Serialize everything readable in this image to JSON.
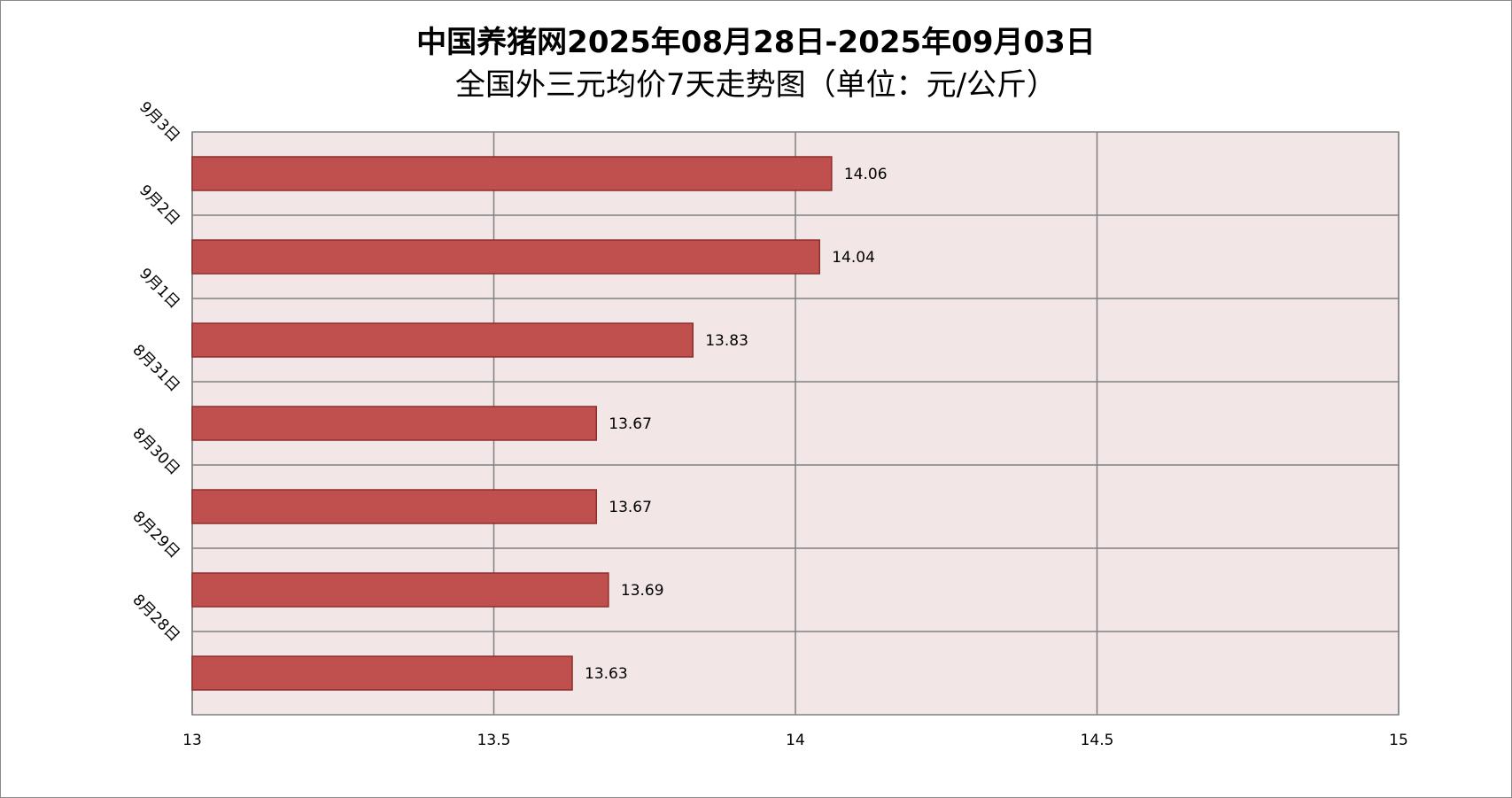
{
  "chart_data": {
    "type": "bar",
    "orientation": "horizontal",
    "title_line1": "中国养猪网2025年08月28日-2025年09月03日",
    "title_line2": "全国外三元均价7天走势图（单位：元/公斤）",
    "categories": [
      "9月3日",
      "9月2日",
      "9月1日",
      "8月31日",
      "8月30日",
      "8月29日",
      "8月28日"
    ],
    "values": [
      14.06,
      14.04,
      13.83,
      13.67,
      13.67,
      13.69,
      13.63
    ],
    "value_labels": [
      "14.06",
      "14.04",
      "13.83",
      "13.67",
      "13.67",
      "13.69",
      "13.63"
    ],
    "xlim": [
      13,
      15
    ],
    "x_ticks": [
      13,
      13.5,
      14,
      14.5,
      15
    ],
    "x_tick_labels": [
      "13",
      "13.5",
      "14",
      "14.5",
      "15"
    ],
    "grid": true,
    "legend": "none",
    "colors": {
      "bar_fill": "#c0504d",
      "bar_stroke": "#8c2f2c",
      "plot_background": "#f2e6e6",
      "gridline": "#808080"
    }
  }
}
